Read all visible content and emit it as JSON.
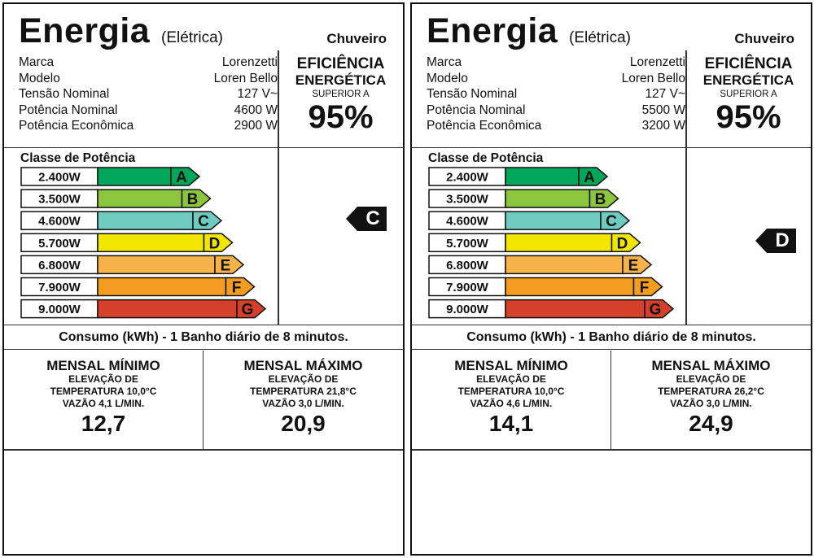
{
  "colors": {
    "A": "#00a65a",
    "B": "#8cc63f",
    "C": "#6dcbbf",
    "D": "#f2e500",
    "E": "#f7b24a",
    "F": "#f39c1f",
    "G": "#d6402a",
    "border": "#111111"
  },
  "rating_letters": [
    "A",
    "B",
    "C",
    "D",
    "E",
    "F",
    "G"
  ],
  "labels": [
    {
      "title": "Energia",
      "subtitle": "(Elétrica)",
      "device": "Chuveiro",
      "specs": [
        {
          "label": "Marca",
          "value": "Lorenzetti"
        },
        {
          "label": "Modelo",
          "value": "Loren Bello"
        },
        {
          "label": "Tensão Nominal",
          "value": "127 V~"
        },
        {
          "label": "Potência Nominal",
          "value": "4600 W"
        },
        {
          "label": "Potência Econômica",
          "value": "2900 W"
        }
      ],
      "efficiency": {
        "l1": "EFICIÊNCIA",
        "l2": "ENERGÉTICA",
        "l3": "SUPERIOR A",
        "value": "95%"
      },
      "class_title": "Classe de Potência",
      "classes": [
        "2.400W",
        "3.500W",
        "4.600W",
        "5.700W",
        "6.800W",
        "7.900W",
        "9.000W"
      ],
      "rating": "C",
      "consumo": "Consumo (kWh) - 1 Banho diário de 8 minutos.",
      "min": {
        "title": "MENSAL MÍNIMO",
        "l1": "ELEVAÇÃO DE",
        "l2": "TEMPERATURA 10,0°C",
        "l3": "VAZÃO 4,1 L/MIN.",
        "value": "12,7"
      },
      "max": {
        "title": "MENSAL MÁXIMO",
        "l1": "ELEVAÇÃO DE",
        "l2": "TEMPERATURA 21,8°C",
        "l3": "VAZÃO 3,0 L/MIN.",
        "value": "20,9"
      }
    },
    {
      "title": "Energia",
      "subtitle": "(Elétrica)",
      "device": "Chuveiro",
      "specs": [
        {
          "label": "Marca",
          "value": "Lorenzetti"
        },
        {
          "label": "Modelo",
          "value": "Loren Bello"
        },
        {
          "label": "Tensão Nominal",
          "value": "127 V~"
        },
        {
          "label": "Potência Nominal",
          "value": "5500 W"
        },
        {
          "label": "Potência Econômica",
          "value": "3200 W"
        }
      ],
      "efficiency": {
        "l1": "EFICIÊNCIA",
        "l2": "ENERGÉTICA",
        "l3": "SUPERIOR A",
        "value": "95%"
      },
      "class_title": "Classe de Potência",
      "classes": [
        "2.400W",
        "3.500W",
        "4.600W",
        "5.700W",
        "6.800W",
        "7.900W",
        "9.000W"
      ],
      "rating": "D",
      "consumo": "Consumo (kWh) - 1 Banho diário de 8 minutos.",
      "min": {
        "title": "MENSAL MÍNIMO",
        "l1": "ELEVAÇÃO DE",
        "l2": "TEMPERATURA 10,0°C",
        "l3": "VAZÃO 4,6 L/MIN.",
        "value": "14,1"
      },
      "max": {
        "title": "MENSAL MÁXIMO",
        "l1": "ELEVAÇÃO DE",
        "l2": "TEMPERATURA 26,2°C",
        "l3": "VAZÃO 3,0 L/MIN.",
        "value": "24,9"
      }
    }
  ]
}
